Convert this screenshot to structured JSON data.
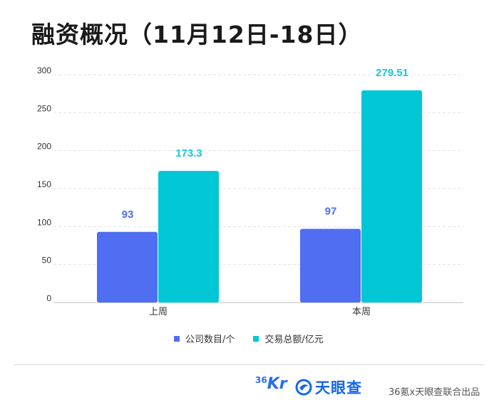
{
  "chart_data": {
    "type": "bar",
    "title": "融资概况（11月12日-18日）",
    "categories": [
      "上周",
      "本周"
    ],
    "series": [
      {
        "name": "公司数目/个",
        "values": [
          93,
          97
        ],
        "labels": [
          "93",
          "97"
        ],
        "color": "#4f6ef2",
        "label_color": "#4f6ef2"
      },
      {
        "name": "交易总额/亿元",
        "values": [
          173.3,
          279.51
        ],
        "labels": [
          "173.3",
          "279.51"
        ],
        "color": "#00c6d6",
        "label_color": "#19c7d6"
      }
    ],
    "yticks": [
      "300",
      "250",
      "200",
      "150",
      "100",
      "50",
      "0"
    ],
    "ylim": [
      0,
      300
    ],
    "grid": true,
    "legend_position": "bottom"
  },
  "footer": {
    "logo_36kr_small": "36",
    "logo_36kr_big": "Kr",
    "logo_tyc_text": "天眼查",
    "source": "36氪x天眼查联合出品"
  }
}
